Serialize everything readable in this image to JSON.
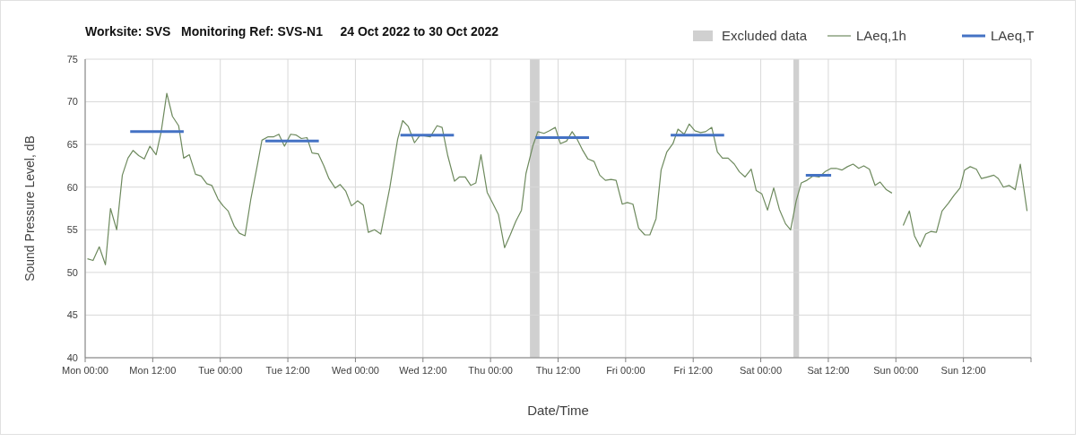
{
  "chart_data": {
    "type": "line",
    "title": "Worksite: SVS   Monitoring Ref: SVS-N1     24 Oct 2022 to 30 Oct 2022",
    "xlabel": "Date/Time",
    "ylabel": "Sound Pressure Level, dB",
    "xlim": [
      "2022-10-24T00:00",
      "2022-10-31T00:00"
    ],
    "ylim": [
      40,
      75
    ],
    "xticks": [
      {
        "value": "2022-10-24T00:00",
        "label": "Mon 00:00"
      },
      {
        "value": "2022-10-24T12:00",
        "label": "Mon 12:00"
      },
      {
        "value": "2022-10-25T00:00",
        "label": "Tue 00:00"
      },
      {
        "value": "2022-10-25T12:00",
        "label": "Tue 12:00"
      },
      {
        "value": "2022-10-26T00:00",
        "label": "Wed 00:00"
      },
      {
        "value": "2022-10-26T12:00",
        "label": "Wed 12:00"
      },
      {
        "value": "2022-10-27T00:00",
        "label": "Thu 00:00"
      },
      {
        "value": "2022-10-27T12:00",
        "label": "Thu 12:00"
      },
      {
        "value": "2022-10-28T00:00",
        "label": "Fri 00:00"
      },
      {
        "value": "2022-10-28T12:00",
        "label": "Fri 12:00"
      },
      {
        "value": "2022-10-29T00:00",
        "label": "Sat 00:00"
      },
      {
        "value": "2022-10-29T12:00",
        "label": "Sat 12:00"
      },
      {
        "value": "2022-10-30T00:00",
        "label": "Sun 00:00"
      },
      {
        "value": "2022-10-30T12:00",
        "label": "Sun 12:00"
      },
      {
        "value": "2022-10-31T00:00",
        "label": null
      }
    ],
    "yticks": [
      40,
      45,
      50,
      55,
      60,
      65,
      70,
      75
    ],
    "grid": true,
    "legend": "top right",
    "bands": [
      {
        "axis": "x",
        "from": "2022-10-27T07:00",
        "to": "2022-10-27T08:42",
        "label": "Excluded data",
        "color": "#d0d0d0"
      },
      {
        "axis": "x",
        "from": "2022-10-29T05:48",
        "to": "2022-10-29T06:48",
        "color": "#d0d0d0"
      }
    ],
    "series": [
      {
        "name": "LAeq,1h",
        "color": "#6e8a5e",
        "x": [
          "2022-10-24T00:24",
          "2022-10-24T01:24",
          "2022-10-24T02:30",
          "2022-10-24T03:36",
          "2022-10-24T04:30",
          "2022-10-24T05:36",
          "2022-10-24T06:36",
          "2022-10-24T07:36",
          "2022-10-24T08:30",
          "2022-10-24T09:30",
          "2022-10-24T10:30",
          "2022-10-24T11:30",
          "2022-10-24T12:36",
          "2022-10-24T13:30",
          "2022-10-24T14:30",
          "2022-10-24T15:30",
          "2022-10-24T16:36",
          "2022-10-24T17:30",
          "2022-10-24T18:30",
          "2022-10-24T19:36",
          "2022-10-24T20:36",
          "2022-10-24T21:36",
          "2022-10-24T22:30",
          "2022-10-24T23:36",
          "2022-10-25T00:30",
          "2022-10-25T01:24",
          "2022-10-25T02:30",
          "2022-10-25T03:24",
          "2022-10-25T04:24",
          "2022-10-25T05:24",
          "2022-10-25T06:30",
          "2022-10-25T07:24",
          "2022-10-25T08:30",
          "2022-10-25T09:30",
          "2022-10-25T10:24",
          "2022-10-25T11:24",
          "2022-10-25T12:30",
          "2022-10-25T13:30",
          "2022-10-25T14:24",
          "2022-10-25T15:24",
          "2022-10-25T16:18",
          "2022-10-25T17:24",
          "2022-10-25T18:24",
          "2022-10-25T19:18",
          "2022-10-25T20:24",
          "2022-10-25T21:18",
          "2022-10-25T22:18",
          "2022-10-25T23:18",
          "2022-10-26T00:24",
          "2022-10-26T01:24",
          "2022-10-26T02:18",
          "2022-10-26T03:24",
          "2022-10-26T04:30",
          "2022-10-26T06:06",
          "2022-10-26T07:30",
          "2022-10-26T08:24",
          "2022-10-26T09:24",
          "2022-10-26T10:30",
          "2022-10-26T11:30",
          "2022-10-26T13:18",
          "2022-10-26T14:30",
          "2022-10-26T15:24",
          "2022-10-26T16:24",
          "2022-10-26T17:36",
          "2022-10-26T18:30",
          "2022-10-26T19:30",
          "2022-10-26T20:30",
          "2022-10-26T21:24",
          "2022-10-26T22:18",
          "2022-10-26T23:24",
          "2022-10-27T00:24",
          "2022-10-27T01:24",
          "2022-10-27T02:30",
          "2022-10-27T03:30",
          "2022-10-27T04:30",
          "2022-10-27T05:30",
          "2022-10-27T06:18",
          "2022-10-27T07:30",
          "2022-10-27T08:24",
          "2022-10-27T09:30",
          "2022-10-27T10:24",
          "2022-10-27T11:30",
          "2022-10-27T12:24",
          "2022-10-27T13:30",
          "2022-10-27T14:30",
          "2022-10-27T15:24",
          "2022-10-27T16:18",
          "2022-10-27T17:18",
          "2022-10-27T18:24",
          "2022-10-27T19:24",
          "2022-10-27T20:24",
          "2022-10-27T21:24",
          "2022-10-27T22:18",
          "2022-10-27T23:24",
          "2022-10-28T00:18",
          "2022-10-28T01:18",
          "2022-10-28T02:18",
          "2022-10-28T03:24",
          "2022-10-28T04:18",
          "2022-10-28T05:24",
          "2022-10-28T06:18",
          "2022-10-28T07:18",
          "2022-10-28T08:24",
          "2022-10-28T09:18",
          "2022-10-28T10:24",
          "2022-10-28T11:18",
          "2022-10-28T12:18",
          "2022-10-28T13:18",
          "2022-10-28T14:12",
          "2022-10-28T15:18",
          "2022-10-28T16:18",
          "2022-10-28T17:12",
          "2022-10-28T18:12",
          "2022-10-28T19:18",
          "2022-10-28T20:12",
          "2022-10-28T21:12",
          "2022-10-28T22:18",
          "2022-10-28T23:12",
          "2022-10-29T00:12",
          "2022-10-29T01:12",
          "2022-10-29T02:18",
          "2022-10-29T03:18",
          "2022-10-29T04:24",
          "2022-10-29T05:18",
          "2022-10-29T06:18",
          "2022-10-29T07:12",
          "2022-10-29T08:12",
          "2022-10-29T09:18",
          "2022-10-29T10:24",
          "2022-10-29T11:24",
          "2022-10-29T12:30",
          "2022-10-29T13:24",
          "2022-10-29T14:24",
          "2022-10-29T15:24",
          "2022-10-29T16:24",
          "2022-10-29T17:24",
          "2022-10-29T18:18",
          "2022-10-29T19:18",
          "2022-10-29T20:18",
          "2022-10-29T21:12",
          "2022-10-29T22:18",
          "2022-10-29T23:18",
          "2022-10-30T00:18",
          "2022-10-30T01:18",
          "2022-10-30T02:24",
          "2022-10-30T03:18",
          "2022-10-30T04:18",
          "2022-10-30T05:18",
          "2022-10-30T06:12",
          "2022-10-30T07:12",
          "2022-10-30T08:12",
          "2022-10-30T09:18",
          "2022-10-30T10:18",
          "2022-10-30T11:24",
          "2022-10-30T12:12",
          "2022-10-30T13:12",
          "2022-10-30T14:18",
          "2022-10-30T15:12",
          "2022-10-30T16:18",
          "2022-10-30T17:24",
          "2022-10-30T18:12",
          "2022-10-30T19:06",
          "2022-10-30T20:06",
          "2022-10-30T21:12",
          "2022-10-30T22:06",
          "2022-10-30T23:18"
        ],
        "values": [
          51.6,
          51.4,
          53.0,
          50.9,
          57.5,
          55.0,
          61.4,
          63.4,
          64.3,
          63.7,
          63.3,
          64.8,
          63.8,
          66.5,
          71.0,
          68.3,
          67.2,
          63.4,
          63.8,
          61.5,
          61.3,
          60.4,
          60.2,
          58.6,
          57.8,
          57.2,
          55.4,
          54.6,
          54.3,
          58.5,
          62.3,
          65.5,
          65.9,
          65.9,
          66.2,
          64.8,
          66.2,
          66.1,
          65.7,
          65.8,
          64.0,
          63.9,
          62.5,
          61.0,
          59.9,
          60.3,
          59.5,
          57.8,
          58.4,
          57.9,
          54.7,
          55.0,
          54.5,
          59.9,
          65.6,
          67.8,
          67.1,
          65.2,
          66.1,
          65.9,
          67.2,
          67.0,
          63.7,
          60.7,
          61.2,
          61.2,
          60.2,
          60.5,
          63.8,
          59.4,
          58.1,
          56.8,
          52.9,
          54.4,
          56.0,
          57.3,
          61.6,
          64.8,
          66.5,
          66.3,
          66.6,
          67.0,
          65.1,
          65.4,
          66.5,
          65.6,
          64.4,
          63.3,
          63.0,
          61.4,
          60.8,
          60.9,
          60.8,
          58.0,
          58.2,
          58.0,
          55.2,
          54.4,
          54.4,
          56.3,
          62.0,
          64.1,
          65.1,
          66.8,
          66.2,
          67.4,
          66.6,
          66.4,
          66.5,
          67.0,
          64.1,
          63.4,
          63.4,
          62.7,
          61.8,
          61.2,
          62.1,
          59.6,
          59.2,
          57.3,
          59.9,
          57.4,
          55.7,
          55.0,
          58.4,
          60.5,
          60.8,
          61.3,
          61.2,
          61.8,
          62.2,
          62.2,
          62.0,
          62.4,
          62.7,
          62.2,
          62.5,
          62.1,
          60.2,
          60.6,
          59.7,
          59.3,
          null,
          55.5,
          57.2,
          54.3,
          53.0,
          54.5,
          54.8,
          54.7,
          57.2,
          58.1,
          59.0,
          59.9,
          62.0,
          62.4,
          62.1,
          61.0,
          61.2,
          61.4,
          61.0,
          60.0,
          60.2,
          59.7,
          62.7,
          57.2
        ]
      },
      {
        "name": "LAeq,T",
        "color": "#4472c4",
        "type": "step",
        "x": [
          "2022-10-24T08:00",
          "2022-10-24T17:30",
          "2022-10-24T20:00",
          "2022-10-25T08:00",
          "2022-10-25T17:30",
          "2022-10-25T20:00",
          "2022-10-26T08:00",
          "2022-10-26T17:30",
          "2022-10-26T20:00",
          "2022-10-27T08:00",
          "2022-10-27T17:30",
          "2022-10-27T20:00",
          "2022-10-28T08:00",
          "2022-10-28T17:30",
          "2022-10-28T20:00",
          "2022-10-29T08:00",
          "2022-10-29T12:30"
        ],
        "values": [
          66.5,
          66.5,
          null,
          65.4,
          65.4,
          null,
          66.1,
          66.1,
          null,
          65.8,
          65.8,
          null,
          66.1,
          66.1,
          null,
          61.4,
          61.4
        ]
      }
    ]
  }
}
